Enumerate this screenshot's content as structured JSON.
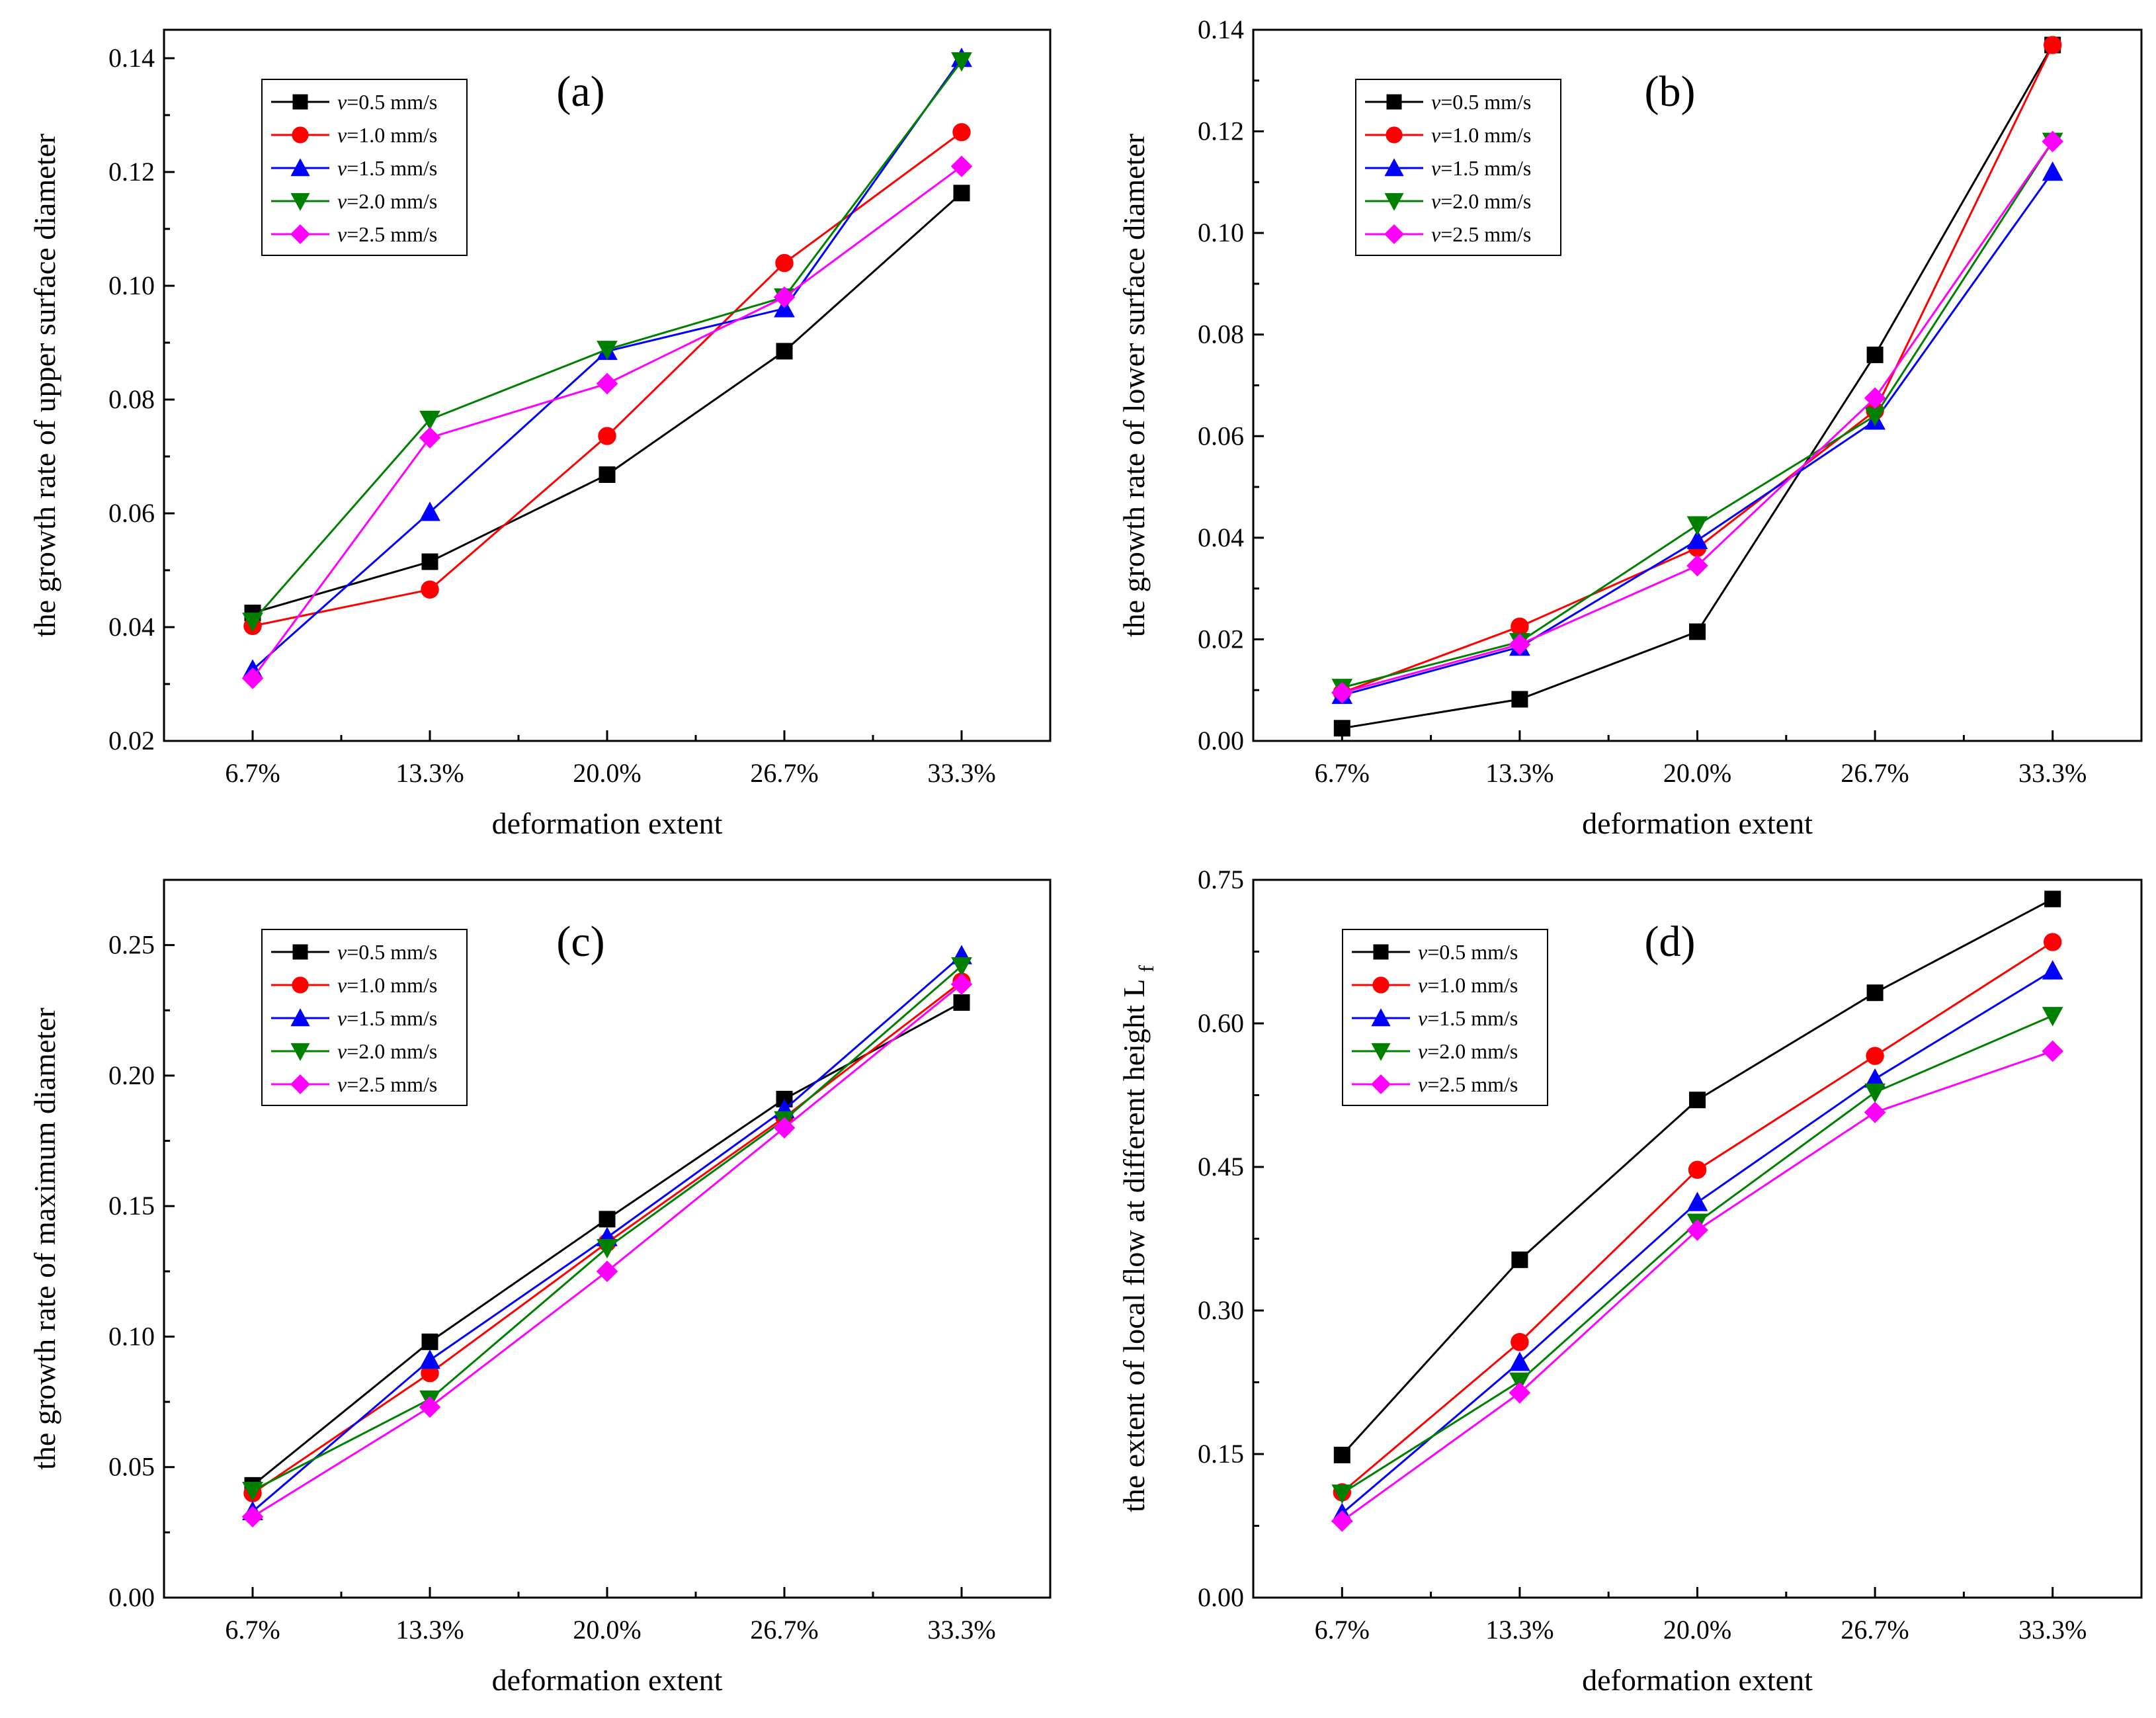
{
  "chart_data": [
    {
      "panel": "(a)",
      "type": "line",
      "categories": [
        "6.7%",
        "13.3%",
        "20.0%",
        "26.7%",
        "33.3%"
      ],
      "xlabel": "deformation extent",
      "ylabel": "the growth rate of upper surface diameter",
      "ylim": [
        0.02,
        0.145
      ],
      "yticks": [
        0.02,
        0.04,
        0.06,
        0.08,
        0.1,
        0.12,
        0.14
      ],
      "ytick_labels": [
        "0.02",
        "0.04",
        "0.06",
        "0.08",
        "0.10",
        "0.12",
        "0.14"
      ],
      "legend_position": "top-left",
      "series": [
        {
          "name": "v=0.5 mm/s",
          "var": "v",
          "rest": "=0.5 mm/s",
          "color": "#000000",
          "marker": "square",
          "values": [
            0.0425,
            0.0515,
            0.0668,
            0.0885,
            0.1163
          ]
        },
        {
          "name": "v=1.0 mm/s",
          "var": "v",
          "rest": "=1.0 mm/s",
          "color": "#ff0000",
          "marker": "circle",
          "values": [
            0.0402,
            0.0466,
            0.0736,
            0.104,
            0.127
          ]
        },
        {
          "name": "v=1.5 mm/s",
          "var": "v",
          "rest": "=1.5 mm/s",
          "color": "#0000ff",
          "marker": "triangle-up",
          "values": [
            0.0325,
            0.0602,
            0.0885,
            0.096,
            0.14
          ]
        },
        {
          "name": "v=2.0 mm/s",
          "var": "v",
          "rest": "=2.0 mm/s",
          "color": "#008000",
          "marker": "triangle-down",
          "values": [
            0.041,
            0.0765,
            0.0888,
            0.098,
            0.1395
          ]
        },
        {
          "name": "v=2.5 mm/s",
          "var": "v",
          "rest": "=2.5 mm/s",
          "color": "#ff00ff",
          "marker": "diamond",
          "values": [
            0.031,
            0.0733,
            0.0828,
            0.098,
            0.121
          ]
        }
      ]
    },
    {
      "panel": "(b)",
      "type": "line",
      "categories": [
        "6.7%",
        "13.3%",
        "20.0%",
        "26.7%",
        "33.3%"
      ],
      "xlabel": "deformation extent",
      "ylabel": "the growth rate of lower surface diameter",
      "ylim": [
        0.0,
        0.14
      ],
      "yticks": [
        0.0,
        0.02,
        0.04,
        0.06,
        0.08,
        0.1,
        0.12,
        0.14
      ],
      "ytick_labels": [
        "0.00",
        "0.02",
        "0.04",
        "0.06",
        "0.08",
        "0.10",
        "0.12",
        "0.14"
      ],
      "legend_position": "top-left",
      "series": [
        {
          "name": "v=0.5 mm/s",
          "var": "v",
          "rest": "=0.5 mm/s",
          "color": "#000000",
          "marker": "square",
          "values": [
            0.0025,
            0.0082,
            0.0215,
            0.076,
            0.137
          ]
        },
        {
          "name": "v=1.0 mm/s",
          "var": "v",
          "rest": "=1.0 mm/s",
          "color": "#ff0000",
          "marker": "circle",
          "values": [
            0.0095,
            0.0225,
            0.038,
            0.065,
            0.137
          ]
        },
        {
          "name": "v=1.5 mm/s",
          "var": "v",
          "rest": "=1.5 mm/s",
          "color": "#0000ff",
          "marker": "triangle-up",
          "values": [
            0.009,
            0.0185,
            0.0395,
            0.063,
            0.112
          ]
        },
        {
          "name": "v=2.0 mm/s",
          "var": "v",
          "rest": "=2.0 mm/s",
          "color": "#008000",
          "marker": "triangle-down",
          "values": [
            0.0105,
            0.0195,
            0.0425,
            0.064,
            0.118
          ]
        },
        {
          "name": "v=2.5 mm/s",
          "var": "v",
          "rest": "=2.5 mm/s",
          "color": "#ff00ff",
          "marker": "diamond",
          "values": [
            0.0095,
            0.019,
            0.0345,
            0.0675,
            0.118
          ]
        }
      ]
    },
    {
      "panel": "(c)",
      "type": "line",
      "categories": [
        "6.7%",
        "13.3%",
        "20.0%",
        "26.7%",
        "33.3%"
      ],
      "xlabel": "deformation extent",
      "ylabel": "the growth rate of maximum diameter",
      "ylim": [
        0.0,
        0.275
      ],
      "yticks": [
        0.0,
        0.05,
        0.1,
        0.15,
        0.2,
        0.25
      ],
      "ytick_labels": [
        "0.00",
        "0.05",
        "0.10",
        "0.15",
        "0.20",
        "0.25"
      ],
      "legend_position": "top-left",
      "series": [
        {
          "name": "v=0.5 mm/s",
          "var": "v",
          "rest": "=0.5 mm/s",
          "color": "#000000",
          "marker": "square",
          "values": [
            0.043,
            0.098,
            0.145,
            0.191,
            0.228
          ]
        },
        {
          "name": "v=1.0 mm/s",
          "var": "v",
          "rest": "=1.0 mm/s",
          "color": "#ff0000",
          "marker": "circle",
          "values": [
            0.04,
            0.086,
            0.136,
            0.184,
            0.236
          ]
        },
        {
          "name": "v=1.5 mm/s",
          "var": "v",
          "rest": "=1.5 mm/s",
          "color": "#0000ff",
          "marker": "triangle-up",
          "values": [
            0.033,
            0.091,
            0.138,
            0.187,
            0.246
          ]
        },
        {
          "name": "v=2.0 mm/s",
          "var": "v",
          "rest": "=2.0 mm/s",
          "color": "#008000",
          "marker": "triangle-down",
          "values": [
            0.041,
            0.076,
            0.134,
            0.183,
            0.242
          ]
        },
        {
          "name": "v=2.5 mm/s",
          "var": "v",
          "rest": "=2.5 mm/s",
          "color": "#ff00ff",
          "marker": "diamond",
          "values": [
            0.031,
            0.073,
            0.125,
            0.18,
            0.235
          ]
        }
      ]
    },
    {
      "panel": "(d)",
      "type": "line",
      "categories": [
        "6.7%",
        "13.3%",
        "20.0%",
        "26.7%",
        "33.3%"
      ],
      "xlabel": "deformation extent",
      "ylabel": "the extent of local flow at different height L",
      "ylabel_subscript": "f",
      "ylim": [
        0.0,
        0.75
      ],
      "yticks": [
        0.0,
        0.15,
        0.3,
        0.45,
        0.6,
        0.75
      ],
      "ytick_labels": [
        "0.00",
        "0.15",
        "0.30",
        "0.45",
        "0.60",
        "0.75"
      ],
      "legend_position": "top-left",
      "series": [
        {
          "name": "v=0.5 mm/s",
          "var": "v",
          "rest": "=0.5 mm/s",
          "color": "#000000",
          "marker": "square",
          "values": [
            0.149,
            0.353,
            0.52,
            0.632,
            0.73
          ]
        },
        {
          "name": "v=1.0 mm/s",
          "var": "v",
          "rest": "=1.0 mm/s",
          "color": "#ff0000",
          "marker": "circle",
          "values": [
            0.11,
            0.267,
            0.447,
            0.566,
            0.685
          ]
        },
        {
          "name": "v=1.5 mm/s",
          "var": "v",
          "rest": "=1.5 mm/s",
          "color": "#0000ff",
          "marker": "triangle-up",
          "values": [
            0.088,
            0.246,
            0.413,
            0.542,
            0.655
          ]
        },
        {
          "name": "v=2.0 mm/s",
          "var": "v",
          "rest": "=2.0 mm/s",
          "color": "#008000",
          "marker": "triangle-down",
          "values": [
            0.109,
            0.226,
            0.392,
            0.528,
            0.608
          ]
        },
        {
          "name": "v=2.5 mm/s",
          "var": "v",
          "rest": "=2.5 mm/s",
          "color": "#ff00ff",
          "marker": "diamond",
          "values": [
            0.08,
            0.214,
            0.384,
            0.507,
            0.571
          ]
        }
      ]
    }
  ]
}
